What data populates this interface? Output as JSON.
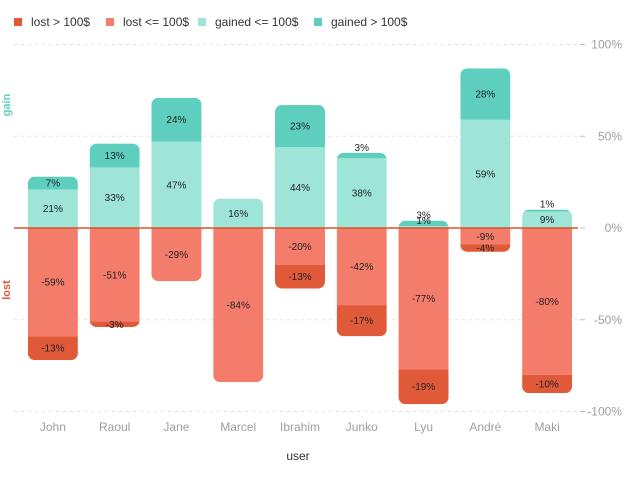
{
  "chart_data": {
    "type": "bar",
    "stacked": "diverging",
    "xlabel": "user",
    "ylabel_positive": "gain",
    "ylabel_negative": "lost",
    "ylim": [
      -100,
      100
    ],
    "yticks": [
      {
        "value": 100,
        "label": "100%"
      },
      {
        "value": 50,
        "label": "50%"
      },
      {
        "value": 0,
        "label": "0%"
      },
      {
        "value": -50,
        "label": "-50%"
      },
      {
        "value": -100,
        "label": "-100%"
      }
    ],
    "legend_position": "top-left",
    "categories": [
      "John",
      "Raoul",
      "Jane",
      "Marcel",
      "Ibrahim",
      "Junko",
      "Lyu",
      "André",
      "Maki"
    ],
    "series": [
      {
        "name": "lost > 100$",
        "color": "#e05a3a",
        "values": [
          -13,
          -3,
          0,
          0,
          -13,
          -17,
          -19,
          -4,
          -10
        ]
      },
      {
        "name": "lost <= 100$",
        "color": "#f47c6a",
        "values": [
          -59,
          -51,
          -29,
          -84,
          -20,
          -42,
          -77,
          -9,
          -80
        ]
      },
      {
        "name": "gained <= 100$",
        "color": "#9ee5d7",
        "values": [
          21,
          33,
          47,
          16,
          44,
          38,
          1,
          59,
          9
        ]
      },
      {
        "name": "gained > 100$",
        "color": "#5ecfbf",
        "values": [
          7,
          13,
          24,
          0,
          23,
          3,
          3,
          28,
          1
        ]
      }
    ],
    "grid": "dashed horizontal",
    "zero_line_color": "#d9532f"
  }
}
